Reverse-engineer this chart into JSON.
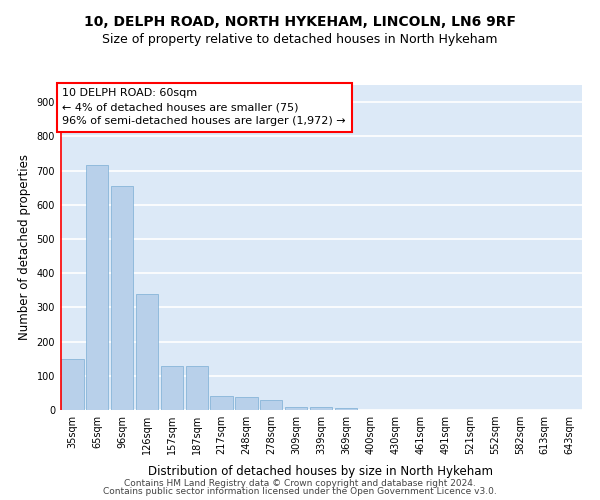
{
  "title1": "10, DELPH ROAD, NORTH HYKEHAM, LINCOLN, LN6 9RF",
  "title2": "Size of property relative to detached houses in North Hykeham",
  "xlabel": "Distribution of detached houses by size in North Hykeham",
  "ylabel": "Number of detached properties",
  "categories": [
    "35sqm",
    "65sqm",
    "96sqm",
    "126sqm",
    "157sqm",
    "187sqm",
    "217sqm",
    "248sqm",
    "278sqm",
    "309sqm",
    "339sqm",
    "369sqm",
    "400sqm",
    "430sqm",
    "461sqm",
    "491sqm",
    "521sqm",
    "552sqm",
    "582sqm",
    "613sqm",
    "643sqm"
  ],
  "values": [
    150,
    715,
    655,
    338,
    130,
    130,
    40,
    38,
    30,
    10,
    10,
    5,
    0,
    0,
    0,
    0,
    0,
    0,
    0,
    0,
    0
  ],
  "bar_color": "#b8d0ea",
  "bar_edgecolor": "#7aadd4",
  "ylim": [
    0,
    950
  ],
  "yticks": [
    0,
    100,
    200,
    300,
    400,
    500,
    600,
    700,
    800,
    900
  ],
  "background_color": "#dce9f7",
  "grid_color": "#ffffff",
  "annotation_text_line1": "10 DELPH ROAD: 60sqm",
  "annotation_text_line2": "← 4% of detached houses are smaller (75)",
  "annotation_text_line3": "96% of semi-detached houses are larger (1,972) →",
  "vline_bar_index": 0,
  "footer1": "Contains HM Land Registry data © Crown copyright and database right 2024.",
  "footer2": "Contains public sector information licensed under the Open Government Licence v3.0.",
  "title1_fontsize": 10,
  "title2_fontsize": 9,
  "xlabel_fontsize": 8.5,
  "ylabel_fontsize": 8.5,
  "tick_fontsize": 7,
  "annotation_fontsize": 8,
  "footer_fontsize": 6.5
}
